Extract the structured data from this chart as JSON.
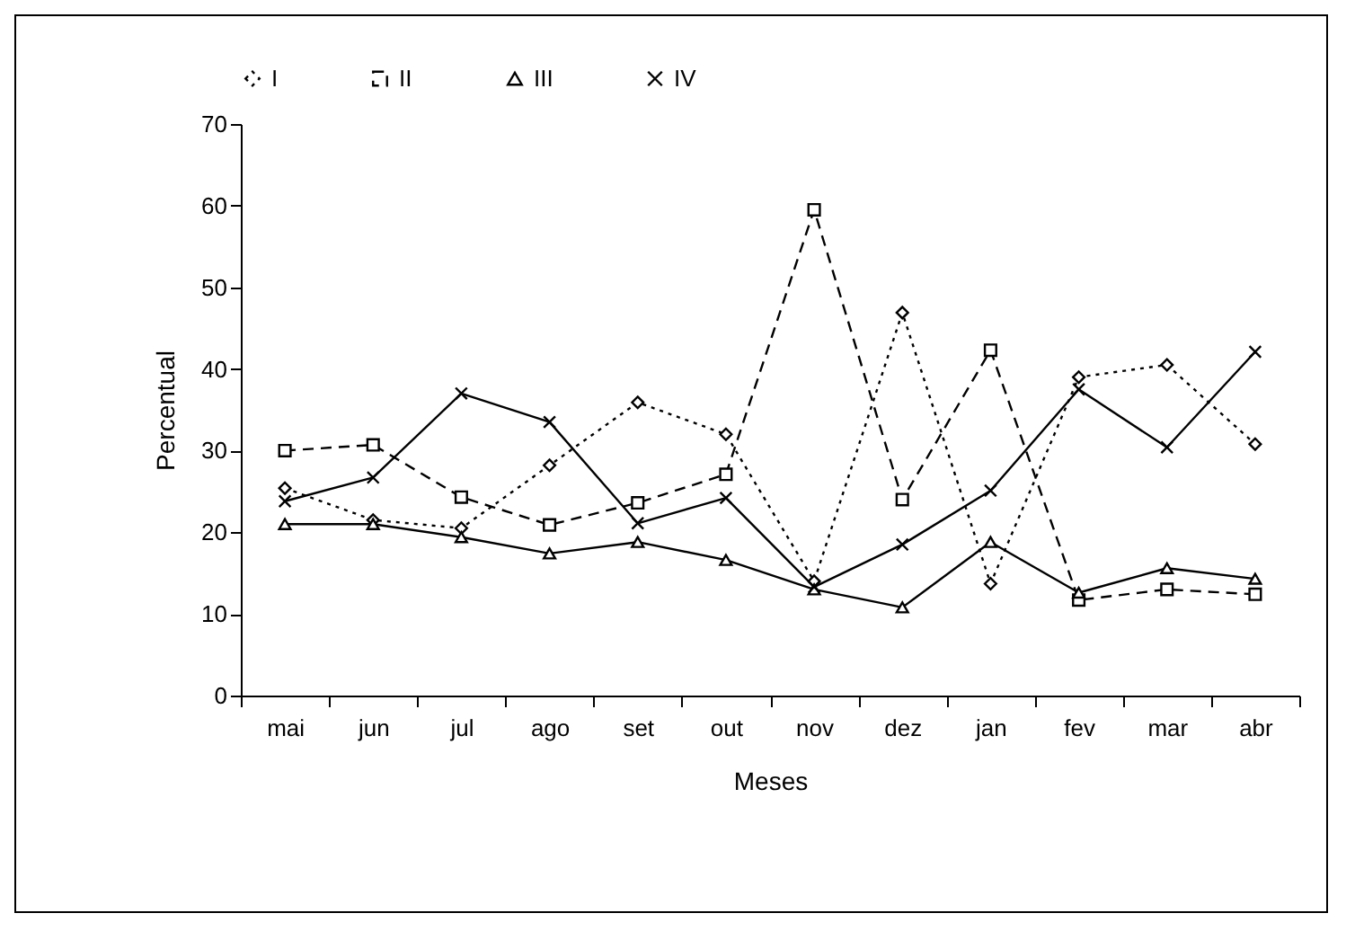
{
  "chart_data": {
    "type": "line",
    "xlabel": "Meses",
    "ylabel": "Percentual",
    "categories": [
      "mai",
      "jun",
      "jul",
      "ago",
      "set",
      "out",
      "nov",
      "dez",
      "jan",
      "fev",
      "mar",
      "abr"
    ],
    "series": [
      {
        "name": "I",
        "color": "#000000",
        "marker": "diamond",
        "line_style": "dotted",
        "values": [
          25.4,
          21.5,
          20.5,
          28.2,
          35.9,
          32,
          14,
          46.9,
          13.7,
          39,
          40.5,
          30.8
        ]
      },
      {
        "name": "II",
        "color": "#000000",
        "marker": "square",
        "line_style": "dashed",
        "values": [
          30,
          30.7,
          24.3,
          20.9,
          23.6,
          27.1,
          59.5,
          24,
          42.3,
          11.7,
          13,
          12.4
        ]
      },
      {
        "name": "III",
        "color": "#000000",
        "marker": "triangle",
        "line_style": "solid",
        "values": [
          21,
          21,
          19.4,
          17.4,
          18.8,
          16.6,
          13,
          10.8,
          18.8,
          12.6,
          15.6,
          14.3
        ]
      },
      {
        "name": "IV",
        "color": "#000000",
        "marker": "cross",
        "line_style": "solid",
        "values": [
          23.8,
          26.7,
          37,
          33.5,
          21.1,
          24.2,
          13.3,
          18.5,
          25.1,
          37.5,
          30.4,
          42.1
        ]
      }
    ],
    "ylim": [
      0,
      70
    ],
    "yticks": [
      0,
      10,
      20,
      30,
      40,
      50,
      60,
      70
    ],
    "grid": false,
    "legend": "top"
  }
}
